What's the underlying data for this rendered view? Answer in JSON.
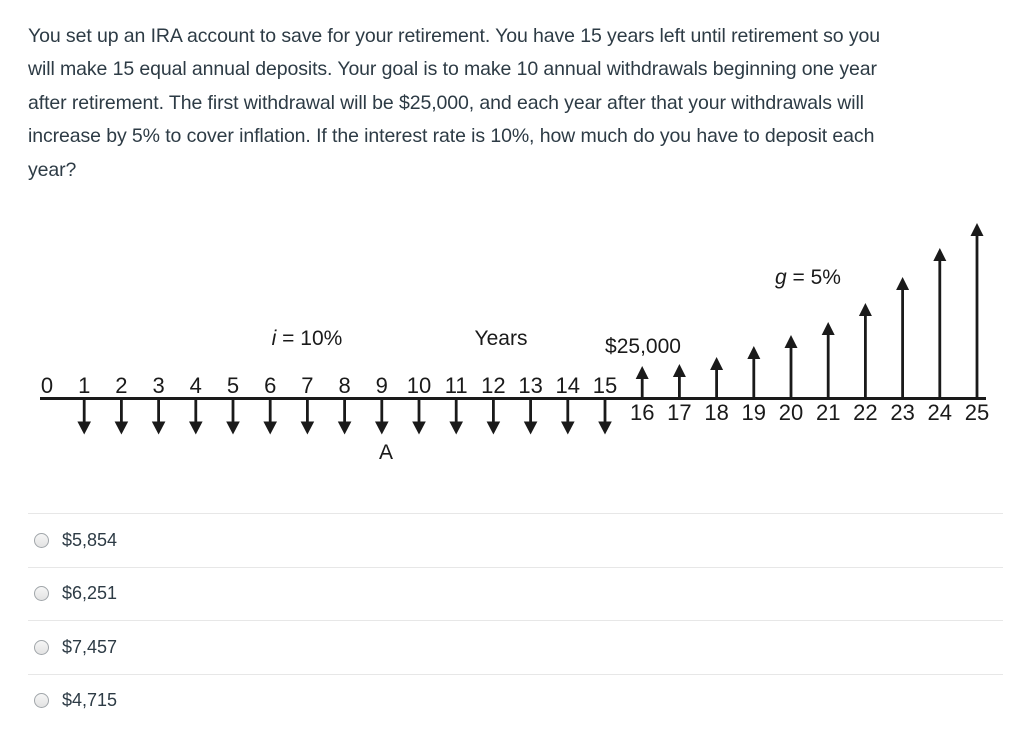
{
  "colors": {
    "text": "#2d3b45",
    "diagram_ink": "#1a1a1a",
    "separator": "#e7e7e7",
    "radio_border": "#a1a6aa"
  },
  "question": {
    "full_text": "You set up an IRA account to save for your retirement. You have 15 years left until retirement so you will make 15 equal annual deposits. Your goal is to make 10 annual withdrawals beginning one year after retirement. The first withdrawal will be $25,000, and each year after that your withdrawals will increase by 5% to cover inflation. If the interest rate is 10%, how much do you have to deposit each year?",
    "lines": [
      "You set up an IRA account to save for your retirement. You have 15 years left until retirement so you",
      "will make 15 equal annual deposits. Your goal is to make 10 annual withdrawals beginning one year",
      "after retirement. The first withdrawal will be $25,000, and each year after that your withdrawals will",
      "increase by 5% to cover inflation. If the interest rate is 10%, how much do you have to deposit each",
      "year?"
    ]
  },
  "diagram": {
    "type": "cashflow-timeline",
    "axis_title": "Years",
    "interest_rate_label": {
      "var": "i",
      "rest": " = 10%"
    },
    "growth_rate_label": {
      "var": "g",
      "rest": " = 5%"
    },
    "first_withdrawal_label": "$25,000",
    "deposit_label": "A",
    "top_tick_years": [
      "0",
      "1",
      "2",
      "3",
      "4",
      "5",
      "6",
      "7",
      "8",
      "9",
      "10",
      "11",
      "12",
      "13",
      "14",
      "15"
    ],
    "bottom_tick_years": [
      "16",
      "17",
      "18",
      "19",
      "20",
      "21",
      "22",
      "23",
      "24",
      "25"
    ],
    "deposit_years": [
      1,
      2,
      3,
      4,
      5,
      6,
      7,
      8,
      9,
      10,
      11,
      12,
      13,
      14,
      15
    ],
    "withdrawal_years": [
      16,
      17,
      18,
      19,
      20,
      21,
      22,
      23,
      24,
      25
    ],
    "deposit_arrow_length": 35,
    "withdrawal_arrow_heights": [
      30,
      32,
      39,
      50,
      61,
      74,
      93,
      119,
      148,
      173
    ]
  },
  "options": [
    {
      "label": "$5,854",
      "selected": false
    },
    {
      "label": "$6,251",
      "selected": false
    },
    {
      "label": "$7,457",
      "selected": false
    },
    {
      "label": "$4,715",
      "selected": false
    }
  ]
}
